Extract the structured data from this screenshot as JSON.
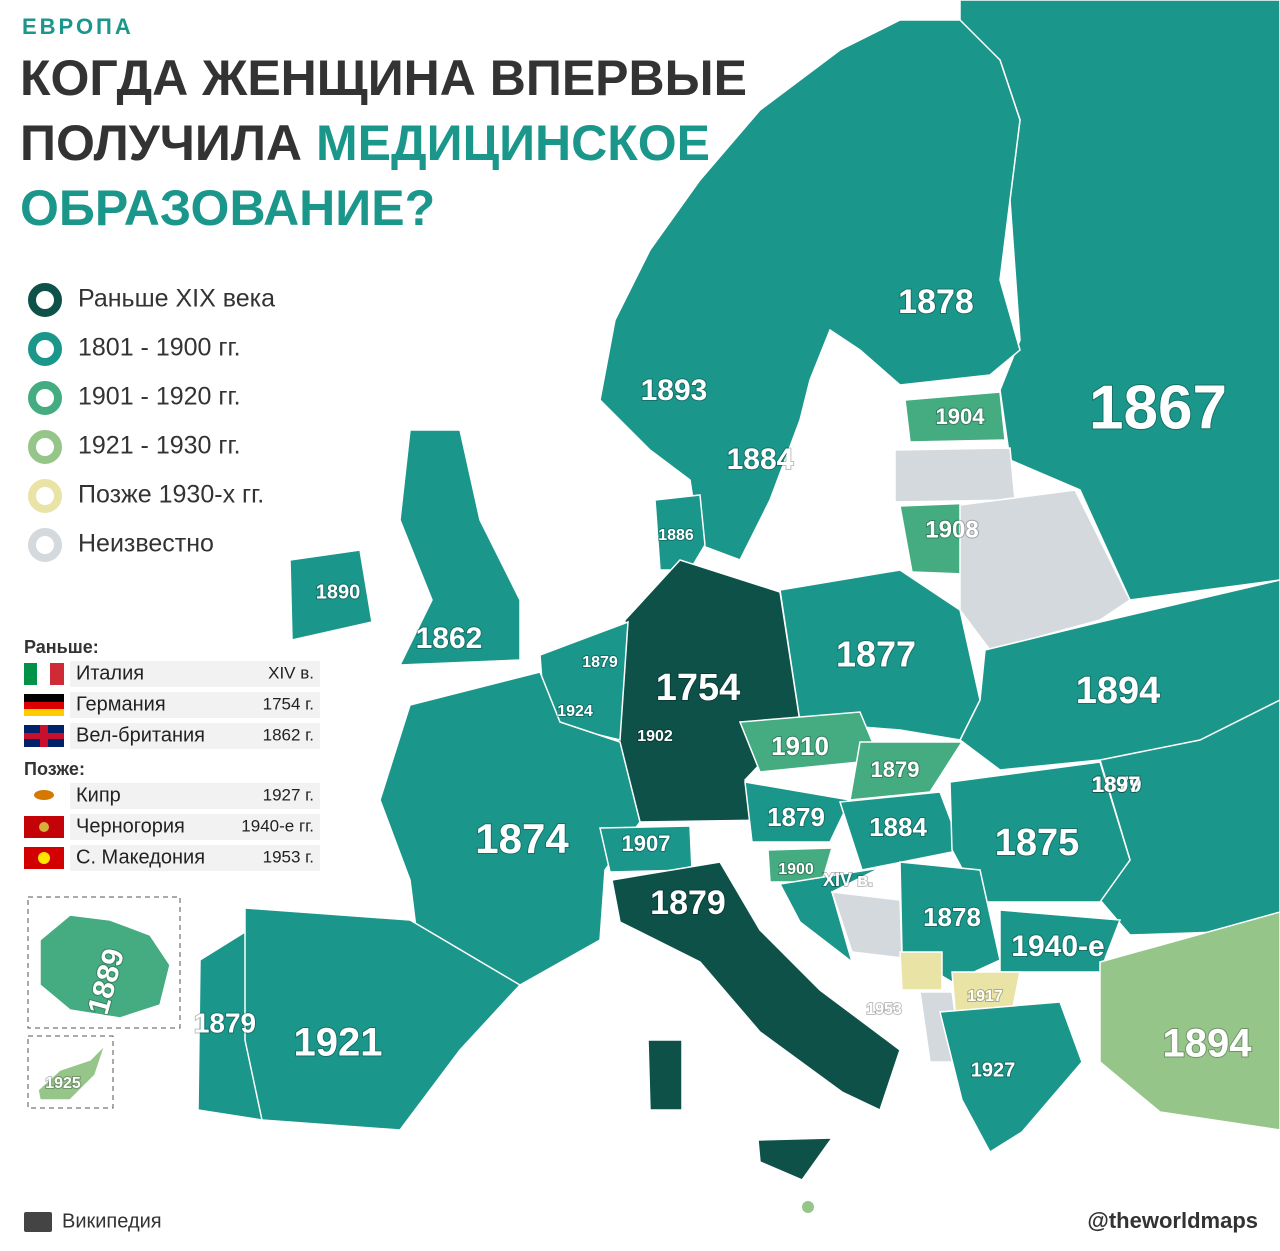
{
  "header": {
    "kicker": "ЕВРОПА",
    "title_line1": "КОГДА ЖЕНЩИНА ВПЕРВЫЕ",
    "title_line2": "ПОЛУЧИЛА",
    "title_accent": "МЕДИЦИНСКОЕ",
    "title_line3": "ОБРАЗОВАНИЕ?"
  },
  "legend": [
    {
      "label": "Раньше XIX века",
      "color": "#0d5148"
    },
    {
      "label": "1801 - 1900 гг.",
      "color": "#1b968b"
    },
    {
      "label": "1901 - 1920 гг.",
      "color": "#45ab80"
    },
    {
      "label": "1921 - 1930 гг.",
      "color": "#96c58a"
    },
    {
      "label": "Позже 1930-х гг.",
      "color": "#e9e4a6"
    },
    {
      "label": "Неизвестно",
      "color": "#d3d9dc"
    }
  ],
  "earlier": {
    "heading": "Раньше:",
    "rows": [
      {
        "country": "Италия",
        "year": "XIV в."
      },
      {
        "country": "Германия",
        "year": "1754 г."
      },
      {
        "country": "Вел-британия",
        "year": "1862 г."
      }
    ]
  },
  "later": {
    "heading": "Позже:",
    "rows": [
      {
        "country": "Кипр",
        "year": "1927 г."
      },
      {
        "country": "Черногория",
        "year": "1940-е гг."
      },
      {
        "country": "С. Македония",
        "year": "1953 г."
      }
    ]
  },
  "map_labels": [
    "1878",
    "1867",
    "1893",
    "1884",
    "1904",
    "1886",
    "1908",
    "1890",
    "1862",
    "1877",
    "1894",
    "1879",
    "1754",
    "1879",
    "1924",
    "1902",
    "1910",
    "1879",
    "1897",
    "1879",
    "1884",
    "1875",
    "1874",
    "1907",
    "1900",
    "XIV в.",
    "1879",
    "1878",
    "1940-е",
    "1953",
    "1917",
    "1889",
    "1879",
    "1921",
    "1894",
    "1927",
    "1925"
  ],
  "footer": {
    "source": "Википедия",
    "handle": "@theworldmaps"
  }
}
